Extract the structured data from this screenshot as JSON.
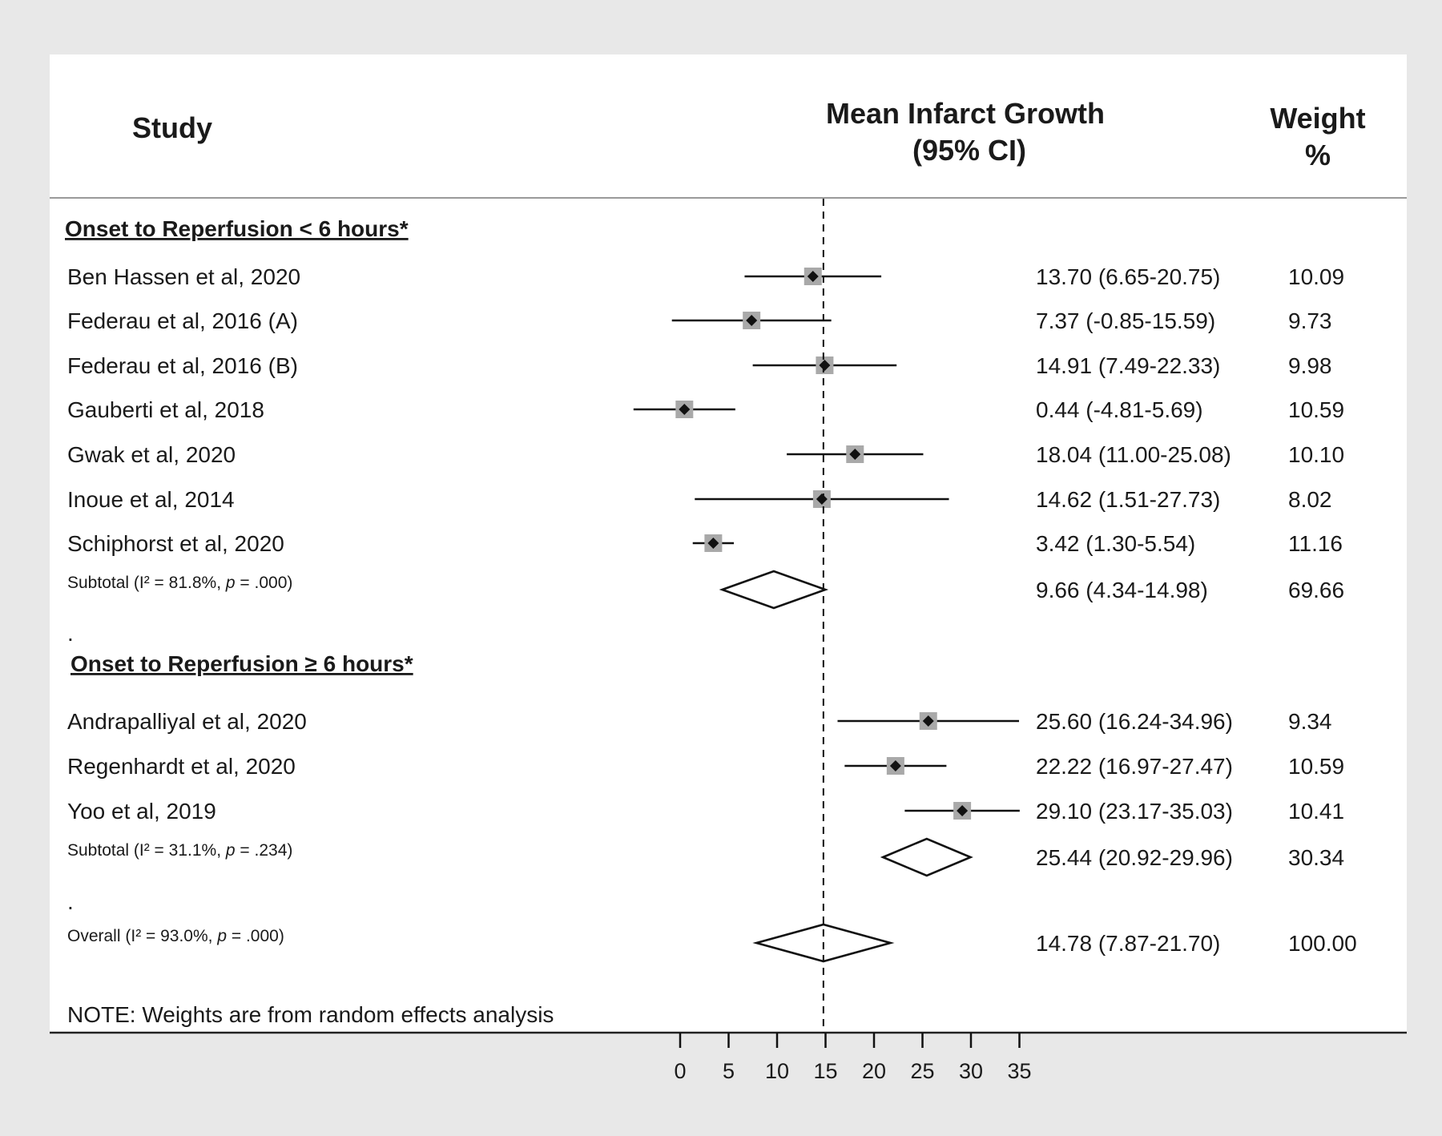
{
  "header": {
    "study": "Study",
    "effect_line1": "Mean Infarct Growth",
    "effect_line2": "(95% CI)",
    "weight_line1": "Weight",
    "weight_line2": "%"
  },
  "note": "NOTE: Weights are from random effects analysis",
  "separator_dot": ".",
  "chart_data": {
    "type": "forest",
    "xlabel": "",
    "xlim": [
      0,
      35
    ],
    "x_ticks": [
      0,
      5,
      10,
      15,
      20,
      25,
      30,
      35
    ],
    "reference_line": 14.78,
    "groups": [
      {
        "title": "Onset to Reperfusion < 6 hours*",
        "studies": [
          {
            "name": "Ben Hassen et al, 2020",
            "est": 13.7,
            "lo": 6.65,
            "hi": 20.75,
            "ci_text": "13.70 (6.65-20.75)",
            "weight": "10.09"
          },
          {
            "name": "Federau et al, 2016 (A)",
            "est": 7.37,
            "lo": -0.85,
            "hi": 15.59,
            "ci_text": "7.37 (-0.85-15.59)",
            "weight": "9.73"
          },
          {
            "name": "Federau et al, 2016 (B)",
            "est": 14.91,
            "lo": 7.49,
            "hi": 22.33,
            "ci_text": "14.91 (7.49-22.33)",
            "weight": "9.98"
          },
          {
            "name": "Gauberti et al, 2018",
            "est": 0.44,
            "lo": -4.81,
            "hi": 5.69,
            "ci_text": "0.44 (-4.81-5.69)",
            "weight": "10.59"
          },
          {
            "name": "Gwak et al, 2020",
            "est": 18.04,
            "lo": 11.0,
            "hi": 25.08,
            "ci_text": "18.04 (11.00-25.08)",
            "weight": "10.10"
          },
          {
            "name": "Inoue et al, 2014",
            "est": 14.62,
            "lo": 1.51,
            "hi": 27.73,
            "ci_text": "14.62 (1.51-27.73)",
            "weight": "8.02"
          },
          {
            "name": "Schiphorst et al, 2020",
            "est": 3.42,
            "lo": 1.3,
            "hi": 5.54,
            "ci_text": "3.42 (1.30-5.54)",
            "weight": "11.16"
          }
        ],
        "subtotal": {
          "prefix": "Subtotal  (I",
          "stat": "² = 81.8%, ",
          "p_label": "p",
          "p_value": " = .000)",
          "est": 9.66,
          "lo": 4.34,
          "hi": 14.98,
          "ci_text": "9.66 (4.34-14.98)",
          "weight": "69.66"
        }
      },
      {
        "title": "Onset to Reperfusion ≥ 6 hours*",
        "studies": [
          {
            "name": "Andrapalliyal et al, 2020",
            "est": 25.6,
            "lo": 16.24,
            "hi": 34.96,
            "ci_text": "25.60 (16.24-34.96)",
            "weight": "9.34"
          },
          {
            "name": "Regenhardt et al, 2020",
            "est": 22.22,
            "lo": 16.97,
            "hi": 27.47,
            "ci_text": "22.22 (16.97-27.47)",
            "weight": "10.59"
          },
          {
            "name": "Yoo et al, 2019",
            "est": 29.1,
            "lo": 23.17,
            "hi": 35.03,
            "ci_text": "29.10 (23.17-35.03)",
            "weight": "10.41"
          }
        ],
        "subtotal": {
          "prefix": "Subtotal  (I",
          "stat": "² = 31.1%, ",
          "p_label": "p",
          "p_value": " = .234)",
          "est": 25.44,
          "lo": 20.92,
          "hi": 29.96,
          "ci_text": "25.44 (20.92-29.96)",
          "weight": "30.34"
        }
      }
    ],
    "overall": {
      "prefix": "Overall  (I",
      "stat": "² = 93.0%, ",
      "p_label": "p",
      "p_value": " = .000)",
      "est": 14.78,
      "lo": 7.87,
      "hi": 21.7,
      "ci_text": "14.78 (7.87-21.70)",
      "weight": "100.00"
    }
  }
}
